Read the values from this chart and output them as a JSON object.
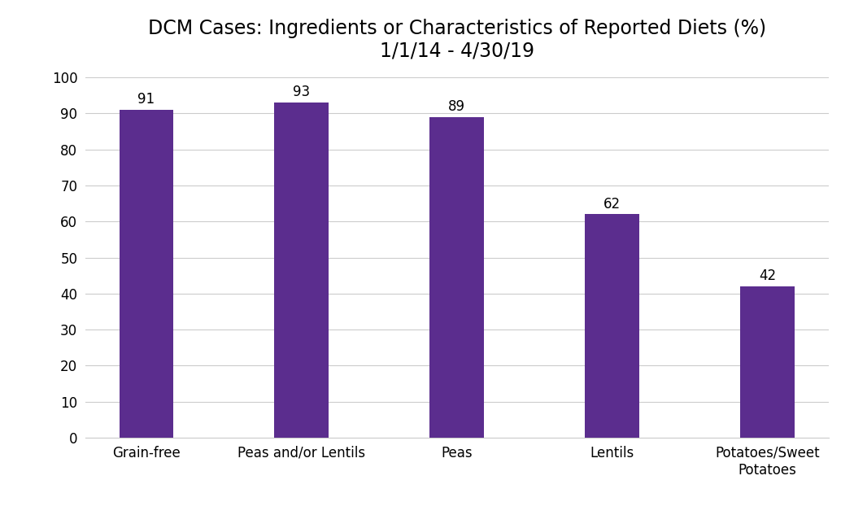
{
  "title_line1": "DCM Cases: Ingredients or Characteristics of Reported Diets (%)",
  "title_line2": "1/1/14 - 4/30/19",
  "categories": [
    "Grain-free",
    "Peas and/or Lentils",
    "Peas",
    "Lentils",
    "Potatoes/Sweet\nPotatoes"
  ],
  "values": [
    91,
    93,
    89,
    62,
    42
  ],
  "bar_color": "#5b2d8e",
  "ylim": [
    0,
    100
  ],
  "yticks": [
    0,
    10,
    20,
    30,
    40,
    50,
    60,
    70,
    80,
    90,
    100
  ],
  "background_color": "#ffffff",
  "grid_color": "#cccccc",
  "title_fontsize": 17,
  "tick_fontsize": 12,
  "value_label_fontsize": 12,
  "bar_width": 0.35,
  "figsize": [
    10.5,
    6.33
  ],
  "dpi": 100
}
